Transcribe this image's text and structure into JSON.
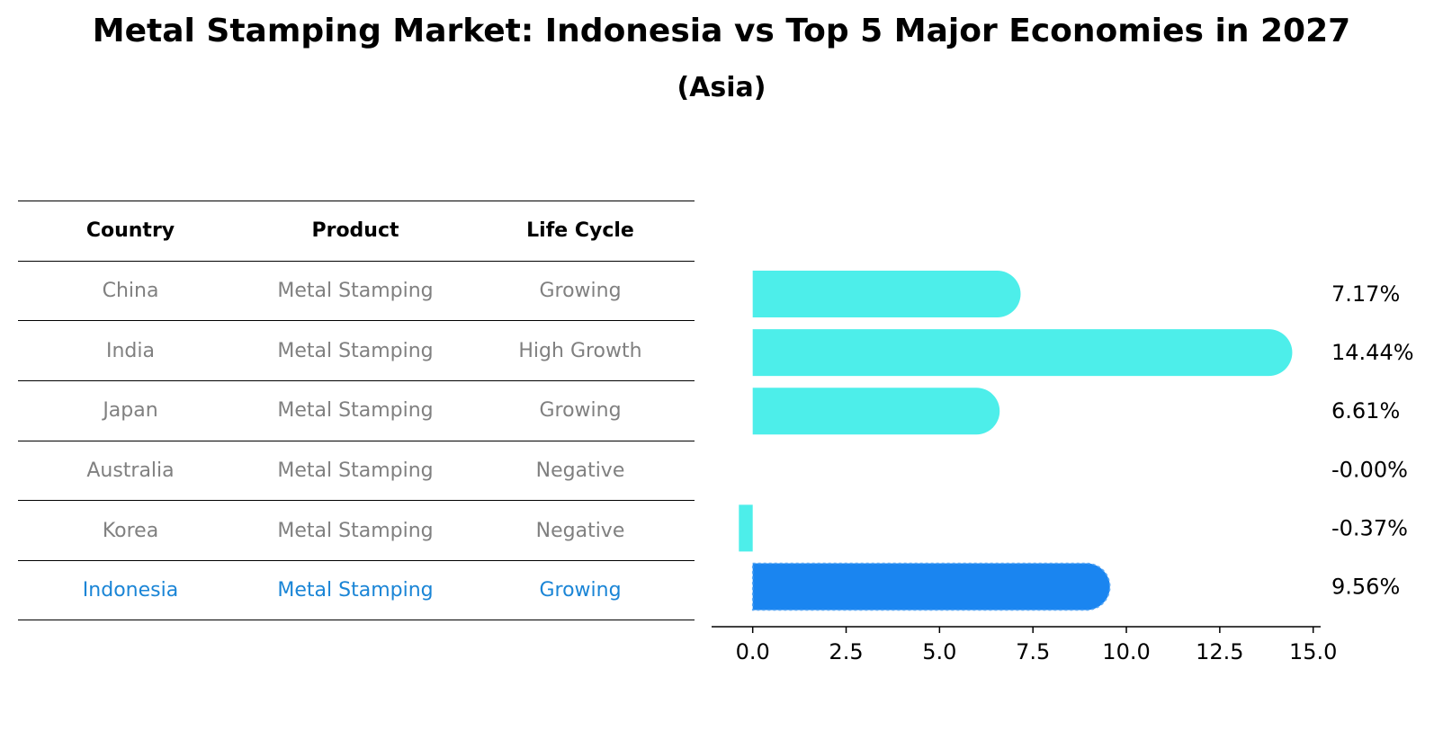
{
  "title": "Metal Stamping Market: Indonesia vs Top 5 Major Economies in 2027",
  "subtitle": "(Asia)",
  "table": {
    "headers": [
      "Country",
      "Product",
      "Life Cycle"
    ],
    "rows": [
      [
        "China",
        "Metal Stamping",
        "Growing"
      ],
      [
        "India",
        "Metal Stamping",
        "High Growth"
      ],
      [
        "Japan",
        "Metal Stamping",
        "Growing"
      ],
      [
        "Australia",
        "Metal Stamping",
        "Negative"
      ],
      [
        "Korea",
        "Metal Stamping",
        "Negative"
      ],
      [
        "Indonesia",
        "Metal Stamping",
        "Growing"
      ]
    ],
    "highlight_row": "Indonesia"
  },
  "colors": {
    "bar": "#4deeea",
    "highlight_bar": "#1a85f0",
    "highlight_text": "#1a85d6",
    "row_text": "#808080"
  },
  "chart_data": {
    "type": "bar",
    "orientation": "horizontal",
    "categories": [
      "China",
      "India",
      "Japan",
      "Australia",
      "Korea",
      "Indonesia"
    ],
    "values": [
      7.17,
      14.44,
      6.61,
      -0.0,
      -0.37,
      9.56
    ],
    "value_labels": [
      "7.17%",
      "14.44%",
      "6.61%",
      "-0.00%",
      "-0.37%",
      "9.56%"
    ],
    "highlight": "Indonesia",
    "xlim": [
      -1.1,
      15.2
    ],
    "xticks": [
      0.0,
      2.5,
      5.0,
      7.5,
      10.0,
      12.5,
      15.0
    ],
    "xtick_labels": [
      "0.0",
      "2.5",
      "5.0",
      "7.5",
      "10.0",
      "12.5",
      "15.0"
    ],
    "grid": false
  }
}
